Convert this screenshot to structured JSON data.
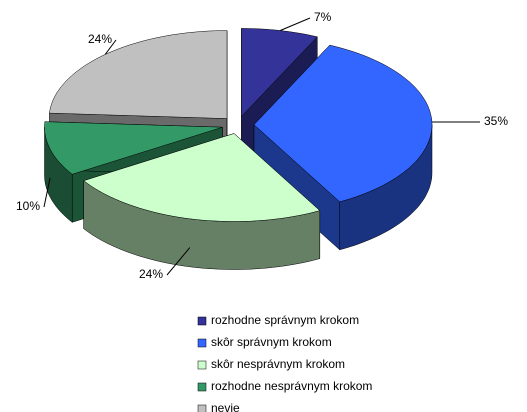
{
  "chart_data": {
    "type": "pie3d",
    "categories": [
      "rozhodne správnym krokom",
      "skôr správnym krokom",
      "skôr nesprávnym krokom",
      "rozhodne nesprávnym krokom",
      "nevie"
    ],
    "values": [
      7,
      35,
      24,
      10,
      24
    ],
    "value_labels": [
      "7%",
      "35%",
      "24%",
      "10%",
      "24%"
    ],
    "colors": [
      "#333399",
      "#3366ff",
      "#ccffcc",
      "#339966",
      "#c0c0c0"
    ],
    "legend": "bottom"
  }
}
